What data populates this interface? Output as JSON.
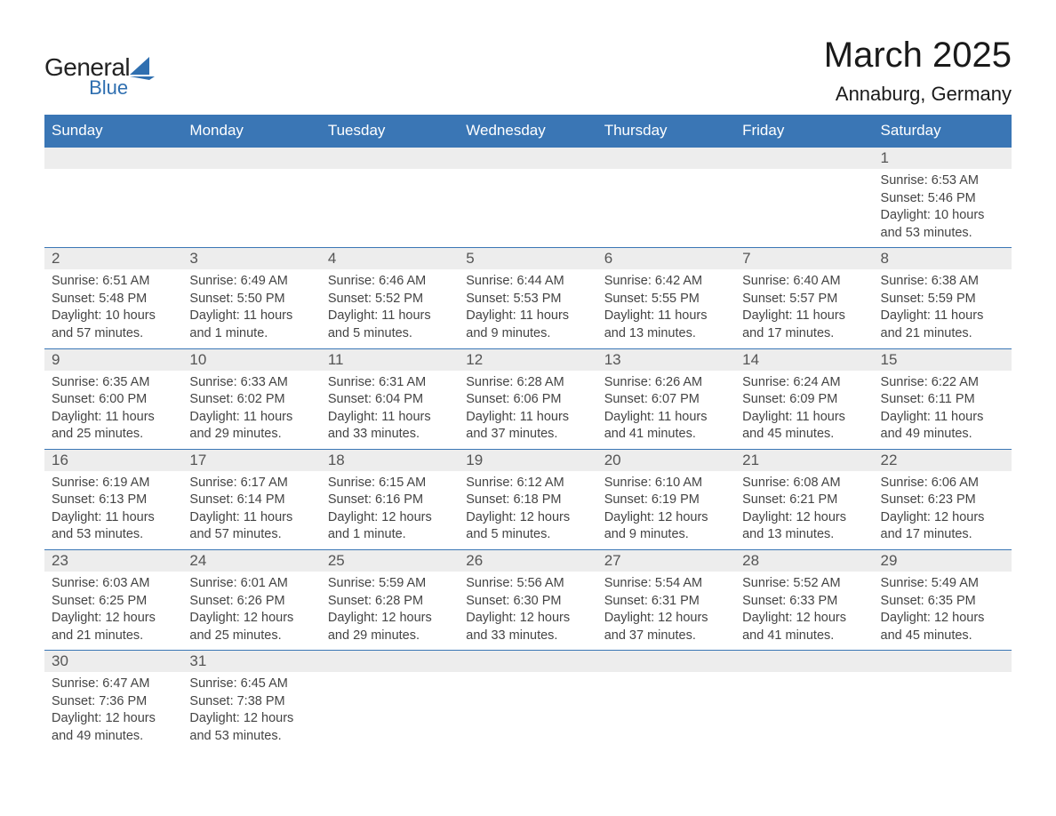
{
  "logo": {
    "text_top": "General",
    "text_bottom": "Blue",
    "shape_color": "#2f6fb0",
    "text_top_color": "#222222",
    "text_bottom_color": "#2f6fb0"
  },
  "title": "March 2025",
  "location": "Annaburg, Germany",
  "colors": {
    "header_bg": "#3a76b5",
    "header_text": "#ffffff",
    "daynum_bg": "#ededed",
    "daynum_text": "#555555",
    "body_text": "#444444",
    "border": "#3a76b5",
    "page_bg": "#ffffff"
  },
  "typography": {
    "title_fontsize": 40,
    "location_fontsize": 22,
    "dow_fontsize": 17,
    "daynum_fontsize": 17,
    "body_fontsize": 14.5,
    "font_family": "Arial"
  },
  "day_names": [
    "Sunday",
    "Monday",
    "Tuesday",
    "Wednesday",
    "Thursday",
    "Friday",
    "Saturday"
  ],
  "weeks": [
    [
      {
        "day": "",
        "sunrise": "",
        "sunset": "",
        "daylight": ""
      },
      {
        "day": "",
        "sunrise": "",
        "sunset": "",
        "daylight": ""
      },
      {
        "day": "",
        "sunrise": "",
        "sunset": "",
        "daylight": ""
      },
      {
        "day": "",
        "sunrise": "",
        "sunset": "",
        "daylight": ""
      },
      {
        "day": "",
        "sunrise": "",
        "sunset": "",
        "daylight": ""
      },
      {
        "day": "",
        "sunrise": "",
        "sunset": "",
        "daylight": ""
      },
      {
        "day": "1",
        "sunrise": "Sunrise: 6:53 AM",
        "sunset": "Sunset: 5:46 PM",
        "daylight": "Daylight: 10 hours and 53 minutes."
      }
    ],
    [
      {
        "day": "2",
        "sunrise": "Sunrise: 6:51 AM",
        "sunset": "Sunset: 5:48 PM",
        "daylight": "Daylight: 10 hours and 57 minutes."
      },
      {
        "day": "3",
        "sunrise": "Sunrise: 6:49 AM",
        "sunset": "Sunset: 5:50 PM",
        "daylight": "Daylight: 11 hours and 1 minute."
      },
      {
        "day": "4",
        "sunrise": "Sunrise: 6:46 AM",
        "sunset": "Sunset: 5:52 PM",
        "daylight": "Daylight: 11 hours and 5 minutes."
      },
      {
        "day": "5",
        "sunrise": "Sunrise: 6:44 AM",
        "sunset": "Sunset: 5:53 PM",
        "daylight": "Daylight: 11 hours and 9 minutes."
      },
      {
        "day": "6",
        "sunrise": "Sunrise: 6:42 AM",
        "sunset": "Sunset: 5:55 PM",
        "daylight": "Daylight: 11 hours and 13 minutes."
      },
      {
        "day": "7",
        "sunrise": "Sunrise: 6:40 AM",
        "sunset": "Sunset: 5:57 PM",
        "daylight": "Daylight: 11 hours and 17 minutes."
      },
      {
        "day": "8",
        "sunrise": "Sunrise: 6:38 AM",
        "sunset": "Sunset: 5:59 PM",
        "daylight": "Daylight: 11 hours and 21 minutes."
      }
    ],
    [
      {
        "day": "9",
        "sunrise": "Sunrise: 6:35 AM",
        "sunset": "Sunset: 6:00 PM",
        "daylight": "Daylight: 11 hours and 25 minutes."
      },
      {
        "day": "10",
        "sunrise": "Sunrise: 6:33 AM",
        "sunset": "Sunset: 6:02 PM",
        "daylight": "Daylight: 11 hours and 29 minutes."
      },
      {
        "day": "11",
        "sunrise": "Sunrise: 6:31 AM",
        "sunset": "Sunset: 6:04 PM",
        "daylight": "Daylight: 11 hours and 33 minutes."
      },
      {
        "day": "12",
        "sunrise": "Sunrise: 6:28 AM",
        "sunset": "Sunset: 6:06 PM",
        "daylight": "Daylight: 11 hours and 37 minutes."
      },
      {
        "day": "13",
        "sunrise": "Sunrise: 6:26 AM",
        "sunset": "Sunset: 6:07 PM",
        "daylight": "Daylight: 11 hours and 41 minutes."
      },
      {
        "day": "14",
        "sunrise": "Sunrise: 6:24 AM",
        "sunset": "Sunset: 6:09 PM",
        "daylight": "Daylight: 11 hours and 45 minutes."
      },
      {
        "day": "15",
        "sunrise": "Sunrise: 6:22 AM",
        "sunset": "Sunset: 6:11 PM",
        "daylight": "Daylight: 11 hours and 49 minutes."
      }
    ],
    [
      {
        "day": "16",
        "sunrise": "Sunrise: 6:19 AM",
        "sunset": "Sunset: 6:13 PM",
        "daylight": "Daylight: 11 hours and 53 minutes."
      },
      {
        "day": "17",
        "sunrise": "Sunrise: 6:17 AM",
        "sunset": "Sunset: 6:14 PM",
        "daylight": "Daylight: 11 hours and 57 minutes."
      },
      {
        "day": "18",
        "sunrise": "Sunrise: 6:15 AM",
        "sunset": "Sunset: 6:16 PM",
        "daylight": "Daylight: 12 hours and 1 minute."
      },
      {
        "day": "19",
        "sunrise": "Sunrise: 6:12 AM",
        "sunset": "Sunset: 6:18 PM",
        "daylight": "Daylight: 12 hours and 5 minutes."
      },
      {
        "day": "20",
        "sunrise": "Sunrise: 6:10 AM",
        "sunset": "Sunset: 6:19 PM",
        "daylight": "Daylight: 12 hours and 9 minutes."
      },
      {
        "day": "21",
        "sunrise": "Sunrise: 6:08 AM",
        "sunset": "Sunset: 6:21 PM",
        "daylight": "Daylight: 12 hours and 13 minutes."
      },
      {
        "day": "22",
        "sunrise": "Sunrise: 6:06 AM",
        "sunset": "Sunset: 6:23 PM",
        "daylight": "Daylight: 12 hours and 17 minutes."
      }
    ],
    [
      {
        "day": "23",
        "sunrise": "Sunrise: 6:03 AM",
        "sunset": "Sunset: 6:25 PM",
        "daylight": "Daylight: 12 hours and 21 minutes."
      },
      {
        "day": "24",
        "sunrise": "Sunrise: 6:01 AM",
        "sunset": "Sunset: 6:26 PM",
        "daylight": "Daylight: 12 hours and 25 minutes."
      },
      {
        "day": "25",
        "sunrise": "Sunrise: 5:59 AM",
        "sunset": "Sunset: 6:28 PM",
        "daylight": "Daylight: 12 hours and 29 minutes."
      },
      {
        "day": "26",
        "sunrise": "Sunrise: 5:56 AM",
        "sunset": "Sunset: 6:30 PM",
        "daylight": "Daylight: 12 hours and 33 minutes."
      },
      {
        "day": "27",
        "sunrise": "Sunrise: 5:54 AM",
        "sunset": "Sunset: 6:31 PM",
        "daylight": "Daylight: 12 hours and 37 minutes."
      },
      {
        "day": "28",
        "sunrise": "Sunrise: 5:52 AM",
        "sunset": "Sunset: 6:33 PM",
        "daylight": "Daylight: 12 hours and 41 minutes."
      },
      {
        "day": "29",
        "sunrise": "Sunrise: 5:49 AM",
        "sunset": "Sunset: 6:35 PM",
        "daylight": "Daylight: 12 hours and 45 minutes."
      }
    ],
    [
      {
        "day": "30",
        "sunrise": "Sunrise: 6:47 AM",
        "sunset": "Sunset: 7:36 PM",
        "daylight": "Daylight: 12 hours and 49 minutes."
      },
      {
        "day": "31",
        "sunrise": "Sunrise: 6:45 AM",
        "sunset": "Sunset: 7:38 PM",
        "daylight": "Daylight: 12 hours and 53 minutes."
      },
      {
        "day": "",
        "sunrise": "",
        "sunset": "",
        "daylight": ""
      },
      {
        "day": "",
        "sunrise": "",
        "sunset": "",
        "daylight": ""
      },
      {
        "day": "",
        "sunrise": "",
        "sunset": "",
        "daylight": ""
      },
      {
        "day": "",
        "sunrise": "",
        "sunset": "",
        "daylight": ""
      },
      {
        "day": "",
        "sunrise": "",
        "sunset": "",
        "daylight": ""
      }
    ]
  ]
}
